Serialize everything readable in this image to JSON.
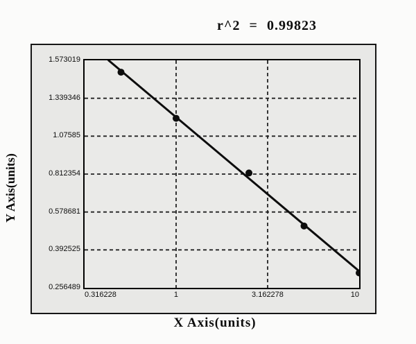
{
  "colors": {
    "page_background": "#fbfbfa",
    "panel_background": "#e8e8e6",
    "plot_background": "#eaeae8",
    "line": "#0d0d0d",
    "text": "#111111"
  },
  "chart_data": {
    "type": "scatter",
    "title": "r^2 = 0.99823",
    "r_squared": 0.99823,
    "xlabel": "X Axis(units)",
    "ylabel": "Y Axis(units)",
    "x_scale": "log",
    "y_scale": "labeled-even-spacing",
    "grid": "dashed-inner",
    "legend": "none",
    "marker_radius": 5,
    "fit_line": "linear regression through points, extended to top frame",
    "x_ticks": [
      {
        "label": "0.316228",
        "value": 0.316228
      },
      {
        "label": "1",
        "value": 1
      },
      {
        "label": "3.162278",
        "value": 3.162278
      },
      {
        "label": "10",
        "value": 10
      }
    ],
    "y_ticks": [
      {
        "label": "1.573019",
        "value": 1.573019
      },
      {
        "label": "1.339346",
        "value": 1.339346
      },
      {
        "label": "1.07585",
        "value": 1.07585
      },
      {
        "label": "0.812354",
        "value": 0.812354
      },
      {
        "label": "0.578681",
        "value": 0.578681
      },
      {
        "label": "0.392525",
        "value": 0.392525
      },
      {
        "label": "0.256489",
        "value": 0.256489
      }
    ],
    "points": [
      {
        "x": 0.5,
        "y": 1.5
      },
      {
        "x": 1,
        "y": 1.2
      },
      {
        "x": 2.5,
        "y": 0.82
      },
      {
        "x": 5,
        "y": 0.51
      },
      {
        "x": 10,
        "y": 0.31
      }
    ],
    "xlim": [
      0.316228,
      10
    ],
    "ylim_labels": [
      0.256489,
      1.573019
    ]
  }
}
